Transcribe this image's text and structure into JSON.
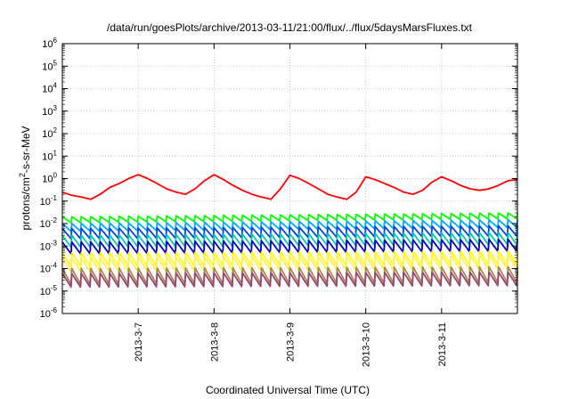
{
  "chart_data": {
    "type": "line",
    "title": "/data/run/goesPlots/archive/2013-03-11/21:00/flux/../flux/5daysMarsFluxes.txt",
    "xlabel": "Coordinated Universal Time (UTC)",
    "ylabel": {
      "base": "protons/cm",
      "sup": "2",
      "rest": "-s-sr-MeV"
    },
    "x_range": [
      "2013-03-06 00:00",
      "2013-03-12 00:00"
    ],
    "x_ticks": [
      "2013-3-7",
      "2013-3-8",
      "2013-3-9",
      "2013-3-10",
      "2013-3-11"
    ],
    "yscale": "log",
    "ylim": [
      1e-06,
      1000000.0
    ],
    "y_ticks": [
      {
        "value": 1e-06,
        "base": "10",
        "exp": "-6"
      },
      {
        "value": 1e-05,
        "base": "10",
        "exp": "-5"
      },
      {
        "value": 0.0001,
        "base": "10",
        "exp": "-4"
      },
      {
        "value": 0.001,
        "base": "10",
        "exp": "-3"
      },
      {
        "value": 0.01,
        "base": "10",
        "exp": "-2"
      },
      {
        "value": 0.1,
        "base": "10",
        "exp": "-1"
      },
      {
        "value": 1,
        "base": "10",
        "exp": "0"
      },
      {
        "value": 10,
        "base": "10",
        "exp": "1"
      },
      {
        "value": 100,
        "base": "10",
        "exp": "2"
      },
      {
        "value": 1000,
        "base": "10",
        "exp": "3"
      },
      {
        "value": 10000,
        "base": "10",
        "exp": "4"
      },
      {
        "value": 100000,
        "base": "10",
        "exp": "5"
      },
      {
        "value": 1000000,
        "base": "10",
        "exp": "6"
      }
    ],
    "grid": true,
    "series": [
      {
        "color": "#ff0000",
        "x": [
          "2013-03-06 00:00",
          "2013-03-06 03:00",
          "2013-03-06 06:00",
          "2013-03-06 09:00",
          "2013-03-06 12:00",
          "2013-03-06 15:00",
          "2013-03-06 18:00",
          "2013-03-06 21:00",
          "2013-03-07 00:00",
          "2013-03-07 03:00",
          "2013-03-07 06:00",
          "2013-03-07 09:00",
          "2013-03-07 12:00",
          "2013-03-07 15:00",
          "2013-03-07 18:00",
          "2013-03-07 21:00",
          "2013-03-08 00:00",
          "2013-03-08 03:00",
          "2013-03-08 06:00",
          "2013-03-08 09:00",
          "2013-03-08 12:00",
          "2013-03-08 15:00",
          "2013-03-08 18:00",
          "2013-03-08 21:00",
          "2013-03-09 00:00",
          "2013-03-09 03:00",
          "2013-03-09 06:00",
          "2013-03-09 09:00",
          "2013-03-09 12:00",
          "2013-03-09 15:00",
          "2013-03-09 18:00",
          "2013-03-09 21:00",
          "2013-03-10 00:00",
          "2013-03-10 03:00",
          "2013-03-10 06:00",
          "2013-03-10 09:00",
          "2013-03-10 12:00",
          "2013-03-10 15:00",
          "2013-03-10 18:00",
          "2013-03-10 21:00",
          "2013-03-11 00:00",
          "2013-03-11 03:00",
          "2013-03-11 06:00",
          "2013-03-11 09:00",
          "2013-03-11 12:00",
          "2013-03-11 15:00",
          "2013-03-11 18:00",
          "2013-03-11 21:00",
          "2013-03-12 00:00"
        ],
        "y": [
          0.25,
          0.18,
          0.15,
          0.12,
          0.2,
          0.4,
          0.6,
          1.0,
          1.5,
          1.0,
          0.6,
          0.35,
          0.25,
          0.2,
          0.35,
          0.8,
          1.5,
          0.9,
          0.5,
          0.3,
          0.2,
          0.15,
          0.12,
          0.35,
          1.4,
          1.0,
          0.6,
          0.35,
          0.2,
          0.15,
          0.12,
          0.25,
          1.2,
          0.9,
          0.6,
          0.4,
          0.25,
          0.2,
          0.3,
          0.7,
          1.2,
          0.8,
          0.5,
          0.35,
          0.3,
          0.35,
          0.5,
          0.8,
          0.9
        ]
      },
      {
        "color": "#00ff00",
        "x": [
          "2013-03-06 00:00",
          "2013-03-12 00:00"
        ],
        "y": [
          0.02,
          0.03
        ],
        "sawtooth": {
          "period_hours": 3,
          "dip": 0.55
        }
      },
      {
        "color": "#00aaff",
        "x": [
          "2013-03-06 00:00",
          "2013-03-12 00:00"
        ],
        "y": [
          0.01,
          0.015
        ],
        "sawtooth": {
          "period_hours": 3,
          "dip": 0.45
        }
      },
      {
        "color": "#0044dd",
        "x": [
          "2013-03-06 00:00",
          "2013-03-12 00:00"
        ],
        "y": [
          0.006,
          0.008
        ],
        "sawtooth": {
          "period_hours": 3,
          "dip": 0.35
        }
      },
      {
        "color": "#00ccaa",
        "x": [
          "2013-03-06 00:00",
          "2013-03-12 00:00"
        ],
        "y": [
          0.003,
          0.004
        ],
        "sawtooth": {
          "period_hours": 3,
          "dip": 0.3
        }
      },
      {
        "color": "#0000bb",
        "x": [
          "2013-03-06 00:00",
          "2013-03-12 00:00"
        ],
        "y": [
          0.0015,
          0.002
        ],
        "sawtooth": {
          "period_hours": 3,
          "dip": 0.3
        }
      },
      {
        "color": "#ffff00",
        "x": [
          "2013-03-06 00:00",
          "2013-03-12 00:00"
        ],
        "y": [
          0.0005,
          0.0006
        ],
        "sawtooth": {
          "period_hours": 3,
          "dip": 0.25
        }
      },
      {
        "color": "#ffee55",
        "x": [
          "2013-03-06 00:00",
          "2013-03-12 00:00"
        ],
        "y": [
          0.0003,
          0.0004
        ],
        "sawtooth": {
          "period_hours": 3,
          "dip": 0.25
        }
      },
      {
        "color": "#aa8844",
        "x": [
          "2013-03-06 00:00",
          "2013-03-12 00:00"
        ],
        "y": [
          0.0001,
          0.00012
        ],
        "sawtooth": {
          "period_hours": 3,
          "dip": 0.2
        }
      },
      {
        "color": "#994477",
        "x": [
          "2013-03-06 00:00",
          "2013-03-12 00:00"
        ],
        "y": [
          6e-05,
          7e-05
        ],
        "sawtooth": {
          "period_hours": 3,
          "dip": 0.25
        }
      }
    ]
  }
}
